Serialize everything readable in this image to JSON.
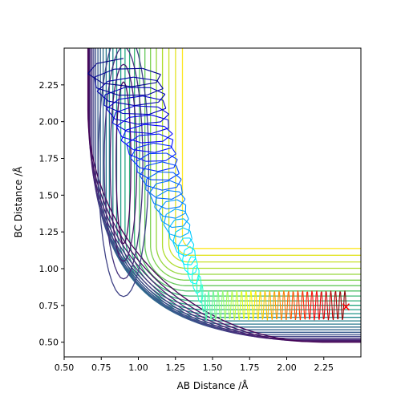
{
  "chart_data": {
    "type": "contour",
    "title": "",
    "xlabel": "AB Distance /Å",
    "ylabel": "BC Distance /Å",
    "xlim": [
      0.5,
      2.5
    ],
    "ylim": [
      0.4,
      2.5
    ],
    "xticks": [
      0.5,
      0.75,
      1.0,
      1.25,
      1.5,
      1.75,
      2.0,
      2.25
    ],
    "xtick_labels": [
      "0.50",
      "0.75",
      "1.00",
      "1.25",
      "1.50",
      "1.75",
      "2.00",
      "2.25"
    ],
    "yticks": [
      0.5,
      0.75,
      1.0,
      1.25,
      1.5,
      1.75,
      2.0,
      2.25
    ],
    "ytick_labels": [
      "0.50",
      "0.75",
      "1.00",
      "1.25",
      "1.50",
      "1.75",
      "2.00",
      "2.25"
    ],
    "grid": false,
    "legend": "none",
    "colormap": "viridis",
    "contour_levels": 26,
    "surface": {
      "well_x": 0.74,
      "well_y": 0.74,
      "asymptote_x": 0.64,
      "asymptote_y": 0.48,
      "min_x": 0.9,
      "min_y": 1.22
    },
    "start_marker": {
      "x": 2.4,
      "y": 0.74,
      "symbol": "x",
      "color": "#ff0000"
    },
    "trajectory_colormap": "jet_r"
  }
}
